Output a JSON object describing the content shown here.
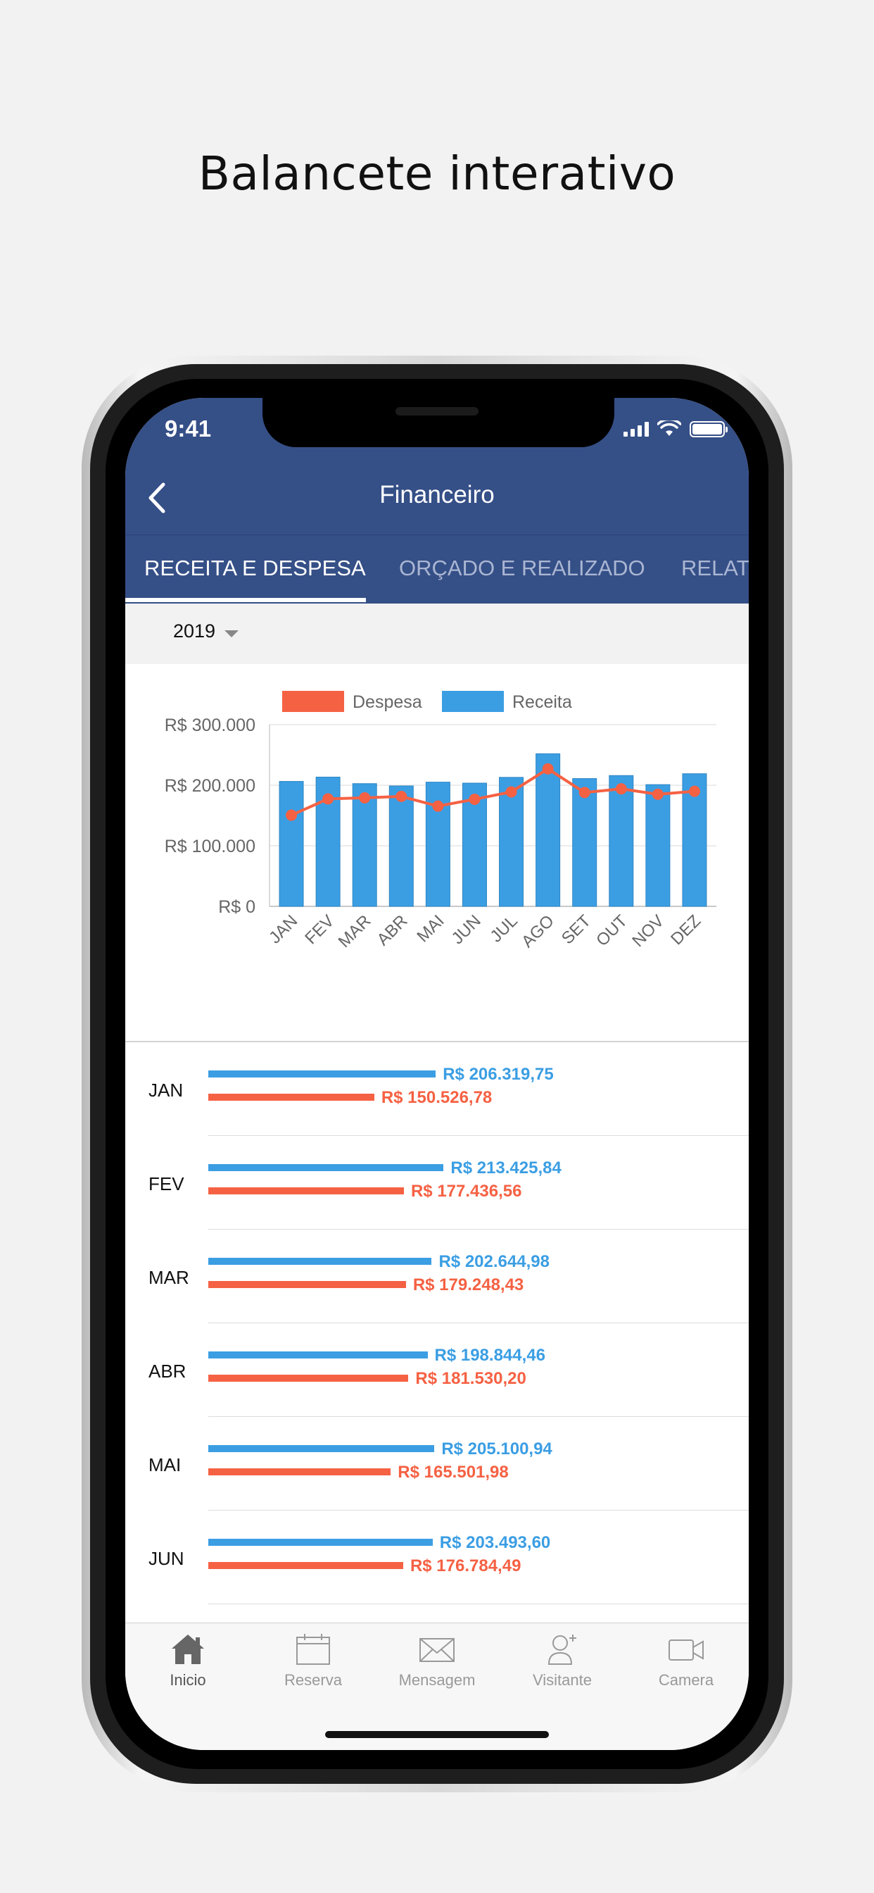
{
  "headline": "Balancete interativo",
  "status": {
    "time": "9:41"
  },
  "nav": {
    "title": "Financeiro"
  },
  "tabs": [
    {
      "label": "RECEITA E DESPESA",
      "active": true
    },
    {
      "label": "ORÇADO E REALIZADO",
      "active": false
    },
    {
      "label": "RELATÓRIOS",
      "active": false
    }
  ],
  "year": {
    "selected": "2019"
  },
  "chart_data": {
    "type": "bar",
    "legend": [
      "Despesa",
      "Receita"
    ],
    "legend_position": "top",
    "categories": [
      "JAN",
      "FEV",
      "MAR",
      "ABR",
      "MAI",
      "JUN",
      "JUL",
      "AGO",
      "SET",
      "OUT",
      "NOV",
      "DEZ"
    ],
    "series": [
      {
        "name": "Receita",
        "type": "bar",
        "color": "#3b9ee3",
        "values": [
          206319.75,
          213425.84,
          202644.98,
          198844.46,
          205100.94,
          203493.6,
          213000,
          252000,
          211000,
          216000,
          201000,
          219000
        ]
      },
      {
        "name": "Despesa",
        "type": "line",
        "color": "#f56143",
        "values": [
          150526.78,
          177436.56,
          179248.43,
          181530.2,
          165501.98,
          176784.49,
          189000,
          227000,
          188000,
          194000,
          185000,
          190000
        ]
      }
    ],
    "y_ticks": [
      "R$ 0",
      "R$ 100.000",
      "R$ 200.000",
      "R$ 300.000"
    ],
    "ylim": [
      0,
      300000
    ],
    "grid": true
  },
  "list": [
    {
      "month": "JAN",
      "receita": "R$ 206.319,75",
      "despesa": "R$ 150.526,78",
      "rv": 206319.75,
      "dv": 150526.78
    },
    {
      "month": "FEV",
      "receita": "R$ 213.425,84",
      "despesa": "R$ 177.436,56",
      "rv": 213425.84,
      "dv": 177436.56
    },
    {
      "month": "MAR",
      "receita": "R$ 202.644,98",
      "despesa": "R$ 179.248,43",
      "rv": 202644.98,
      "dv": 179248.43
    },
    {
      "month": "ABR",
      "receita": "R$ 198.844,46",
      "despesa": "R$ 181.530,20",
      "rv": 198844.46,
      "dv": 181530.2
    },
    {
      "month": "MAI",
      "receita": "R$ 205.100,94",
      "despesa": "R$ 165.501,98",
      "rv": 205100.94,
      "dv": 165501.98
    },
    {
      "month": "JUN",
      "receita": "R$ 203.493,60",
      "despesa": "R$ 176.784,49",
      "rv": 203493.6,
      "dv": 176784.49
    }
  ],
  "tabbar": [
    {
      "label": "Inicio",
      "icon": "home-icon",
      "active": true
    },
    {
      "label": "Reserva",
      "icon": "calendar-icon",
      "active": false
    },
    {
      "label": "Mensagem",
      "icon": "envelope-icon",
      "active": false
    },
    {
      "label": "Visitante",
      "icon": "add-person-icon",
      "active": false
    },
    {
      "label": "Camera",
      "icon": "video-camera-icon",
      "active": false
    }
  ]
}
